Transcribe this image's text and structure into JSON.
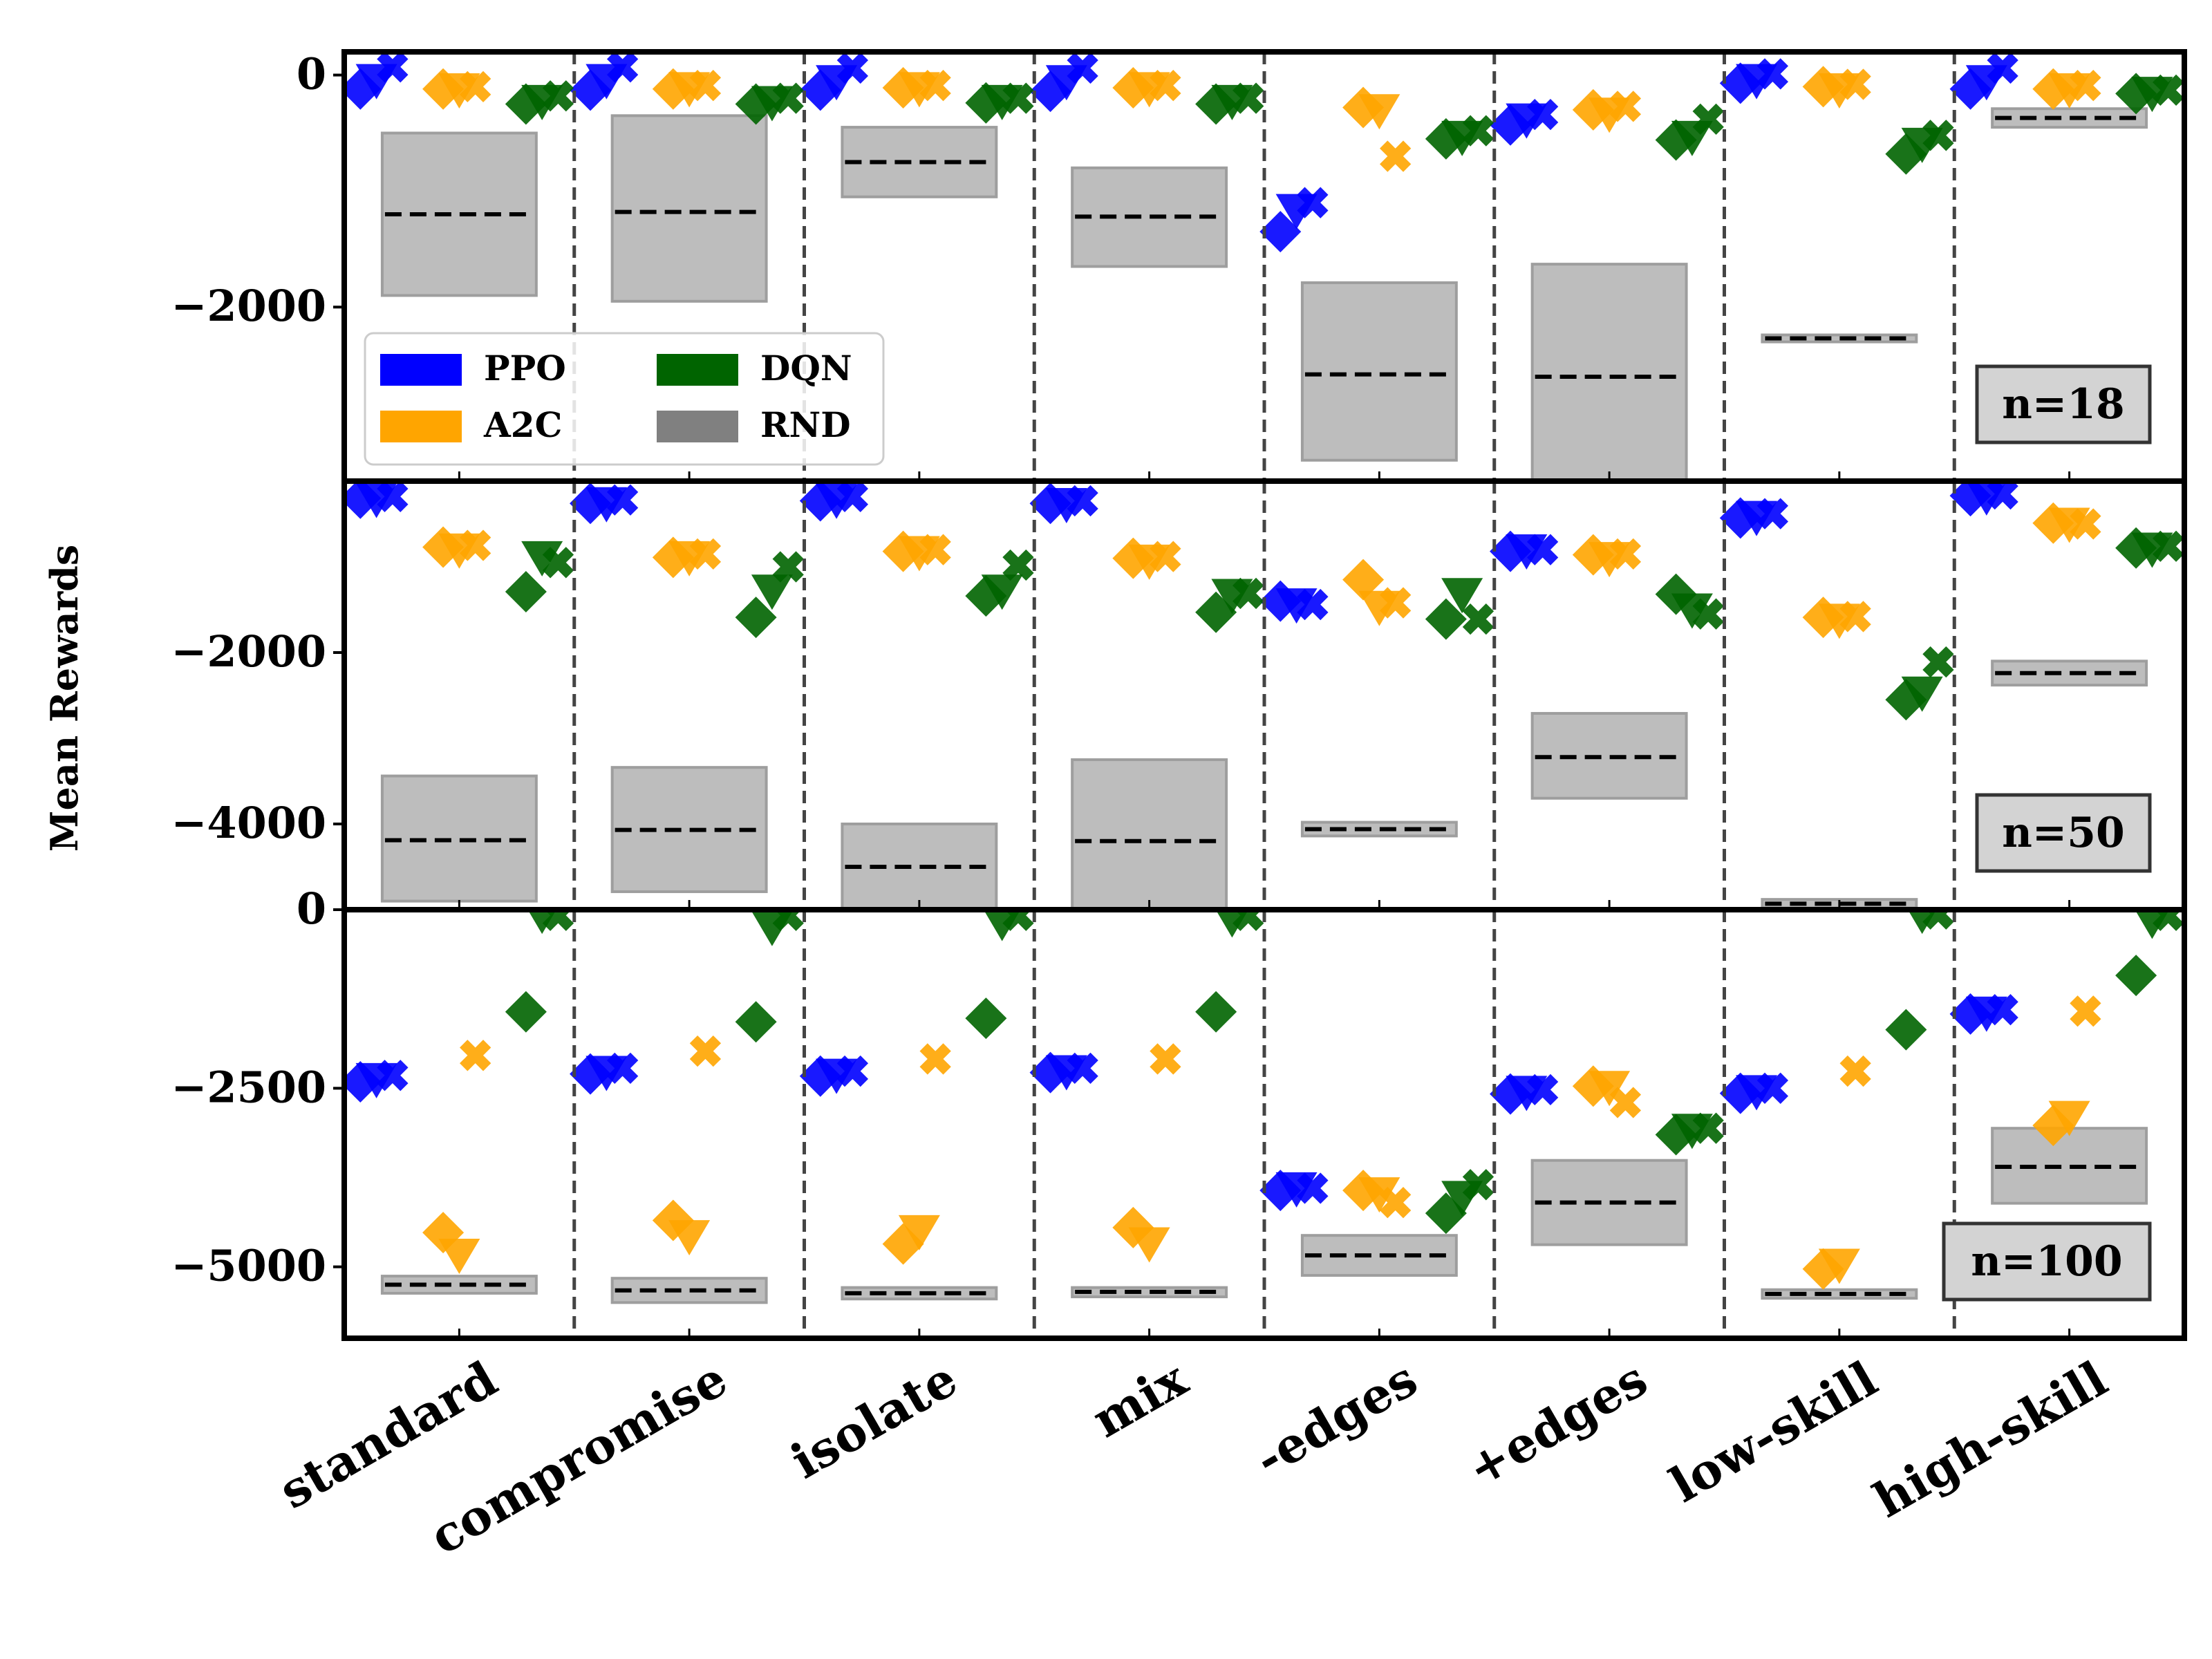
{
  "chart_data": {
    "type": "scatter",
    "ylabel": "Mean Rewards",
    "categories": [
      "standard",
      "compromise",
      "isolate",
      "mix",
      "-edges",
      "+edges",
      "low-skill",
      "high-skill"
    ],
    "legend": {
      "placement": "lower-left of top panel",
      "entries": [
        {
          "name": "PPO",
          "color": "#0000ff"
        },
        {
          "name": "A2C",
          "color": "#ffa500"
        },
        {
          "name": "DQN",
          "color": "#006400"
        },
        {
          "name": "RND",
          "color": "#808080"
        }
      ]
    },
    "colors": {
      "PPO": "#0000ff",
      "A2C": "#ffa500",
      "DQN": "#006400",
      "RND": "#808080"
    },
    "markers": [
      "diamond",
      "triangle-down",
      "x"
    ],
    "panels": [
      {
        "label": "n=18",
        "ylim": [
          -3500,
          200
        ],
        "yticks": [
          {
            "value": 0,
            "label": "0"
          },
          {
            "value": -2000,
            "label": "−2000"
          }
        ],
        "rnd": [
          {
            "mean": -1200,
            "low": -1900,
            "high": -500
          },
          {
            "mean": -1180,
            "low": -1950,
            "high": -350
          },
          {
            "mean": -750,
            "low": -1050,
            "high": -450
          },
          {
            "mean": -1220,
            "low": -1650,
            "high": -800
          },
          {
            "mean": -2580,
            "low": -3320,
            "high": -1790
          },
          {
            "mean": -2600,
            "low": -3600,
            "high": -1630
          },
          {
            "mean": -2270,
            "low": -2300,
            "high": -2240
          },
          {
            "mean": -370,
            "low": -450,
            "high": -290
          }
        ],
        "algos": {
          "PPO": [
            {
              "diamond": -120,
              "triangle-down": -30,
              "x": 70
            },
            {
              "diamond": -130,
              "triangle-down": -30,
              "x": 70
            },
            {
              "diamond": -130,
              "triangle-down": -40,
              "x": 60
            },
            {
              "diamond": -140,
              "triangle-down": -40,
              "x": 60
            },
            {
              "diamond": -1350,
              "triangle-down": -1150,
              "x": -1100
            },
            {
              "diamond": -430,
              "triangle-down": -370,
              "x": -340
            },
            {
              "diamond": -70,
              "triangle-down": -30,
              "x": 10
            },
            {
              "diamond": -120,
              "triangle-down": -40,
              "x": 60
            }
          ],
          "A2C": [
            {
              "diamond": -120,
              "triangle-down": -110,
              "x": -100
            },
            {
              "diamond": -120,
              "triangle-down": -100,
              "x": -90
            },
            {
              "diamond": -110,
              "triangle-down": -100,
              "x": -90
            },
            {
              "diamond": -110,
              "triangle-down": -100,
              "x": -90
            },
            {
              "diamond": -280,
              "triangle-down": -290,
              "x": -700
            },
            {
              "diamond": -300,
              "triangle-down": -320,
              "x": -270
            },
            {
              "diamond": -100,
              "triangle-down": -110,
              "x": -80
            },
            {
              "diamond": -120,
              "triangle-down": -110,
              "x": -90
            }
          ],
          "DQN": [
            {
              "diamond": -250,
              "triangle-down": -210,
              "x": -180
            },
            {
              "diamond": -250,
              "triangle-down": -220,
              "x": -200
            },
            {
              "diamond": -240,
              "triangle-down": -210,
              "x": -200
            },
            {
              "diamond": -250,
              "triangle-down": -210,
              "x": -200
            },
            {
              "diamond": -550,
              "triangle-down": -520,
              "x": -480
            },
            {
              "diamond": -560,
              "triangle-down": -520,
              "x": -380
            },
            {
              "diamond": -680,
              "triangle-down": -580,
              "x": -520
            },
            {
              "diamond": -160,
              "triangle-down": -140,
              "x": -130
            }
          ]
        }
      },
      {
        "label": "n=50",
        "ylim": [
          -5000,
          0
        ],
        "yticks": [
          {
            "value": -2000,
            "label": "−2000"
          },
          {
            "value": -4000,
            "label": "−4000"
          }
        ],
        "rnd": [
          {
            "mean": -4190,
            "low": -4900,
            "high": -3440
          },
          {
            "mean": -4070,
            "low": -4790,
            "high": -3340
          },
          {
            "mean": -4500,
            "low": -5000,
            "high": -4000
          },
          {
            "mean": -4200,
            "low": -5000,
            "high": -3250
          },
          {
            "mean": -4060,
            "low": -4140,
            "high": -3980
          },
          {
            "mean": -3220,
            "low": -3700,
            "high": -2710
          },
          {
            "mean": -4930,
            "low": -4980,
            "high": -4880
          },
          {
            "mean": -2240,
            "low": -2380,
            "high": -2100
          }
        ],
        "algos": {
          "PPO": [
            {
              "diamond": -200,
              "triangle-down": -190,
              "x": -180
            },
            {
              "diamond": -260,
              "triangle-down": -240,
              "x": -220
            },
            {
              "diamond": -230,
              "triangle-down": -200,
              "x": -180
            },
            {
              "diamond": -260,
              "triangle-down": -250,
              "x": -230
            },
            {
              "diamond": -1400,
              "triangle-down": -1420,
              "x": -1440
            },
            {
              "diamond": -820,
              "triangle-down": -790,
              "x": -800
            },
            {
              "diamond": -430,
              "triangle-down": -400,
              "x": -380
            },
            {
              "diamond": -170,
              "triangle-down": -160,
              "x": -150
            }
          ],
          "A2C": [
            {
              "diamond": -770,
              "triangle-down": -780,
              "x": -750
            },
            {
              "diamond": -890,
              "triangle-down": -870,
              "x": -850
            },
            {
              "diamond": -820,
              "triangle-down": -810,
              "x": -800
            },
            {
              "diamond": -900,
              "triangle-down": -910,
              "x": -880
            },
            {
              "diamond": -1150,
              "triangle-down": -1450,
              "x": -1420
            },
            {
              "diamond": -860,
              "triangle-down": -880,
              "x": -850
            },
            {
              "diamond": -1590,
              "triangle-down": -1600,
              "x": -1580
            },
            {
              "diamond": -490,
              "triangle-down": -480,
              "x": -500
            }
          ],
          "DQN": [
            {
              "diamond": -1290,
              "triangle-down": -870,
              "x": -950
            },
            {
              "diamond": -1590,
              "triangle-down": -1260,
              "x": -1000
            },
            {
              "diamond": -1340,
              "triangle-down": -1260,
              "x": -980
            },
            {
              "diamond": -1530,
              "triangle-down": -1310,
              "x": -1310
            },
            {
              "diamond": -1610,
              "triangle-down": -1300,
              "x": -1610
            },
            {
              "diamond": -1320,
              "triangle-down": -1480,
              "x": -1550
            },
            {
              "diamond": -2550,
              "triangle-down": -2450,
              "x": -2110
            },
            {
              "diamond": -780,
              "triangle-down": -770,
              "x": -760
            }
          ]
        }
      },
      {
        "label": "n=100",
        "ylim": [
          -6000,
          0
        ],
        "yticks": [
          {
            "value": 0,
            "label": "0"
          },
          {
            "value": -2500,
            "label": "−2500"
          },
          {
            "value": -5000,
            "label": "−5000"
          }
        ],
        "rnd": [
          {
            "mean": -5250,
            "low": -5370,
            "high": -5130
          },
          {
            "mean": -5330,
            "low": -5500,
            "high": -5160
          },
          {
            "mean": -5370,
            "low": -5450,
            "high": -5290
          },
          {
            "mean": -5350,
            "low": -5420,
            "high": -5290
          },
          {
            "mean": -4840,
            "low": -5120,
            "high": -4560
          },
          {
            "mean": -4100,
            "low": -4690,
            "high": -3510
          },
          {
            "mean": -5380,
            "low": -5440,
            "high": -5320
          },
          {
            "mean": -3600,
            "low": -4110,
            "high": -3060
          }
        ],
        "algos": {
          "PPO": [
            {
              "diamond": -2410,
              "triangle-down": -2350,
              "x": -2320
            },
            {
              "diamond": -2300,
              "triangle-down": -2250,
              "x": -2220
            },
            {
              "diamond": -2330,
              "triangle-down": -2290,
              "x": -2260
            },
            {
              "diamond": -2280,
              "triangle-down": -2240,
              "x": -2220
            },
            {
              "diamond": -3930,
              "triangle-down": -3880,
              "x": -3900
            },
            {
              "diamond": -2580,
              "triangle-down": -2530,
              "x": -2520
            },
            {
              "diamond": -2570,
              "triangle-down": -2520,
              "x": -2500
            },
            {
              "diamond": -1460,
              "triangle-down": -1420,
              "x": -1400
            }
          ],
          "A2C": [
            {
              "diamond": -4520,
              "triangle-down": -4810,
              "x": -2040
            },
            {
              "diamond": -4350,
              "triangle-down": -4550,
              "x": -1980
            },
            {
              "diamond": -4680,
              "triangle-down": -4480,
              "x": -2090
            },
            {
              "diamond": -4450,
              "triangle-down": -4650,
              "x": -2090
            },
            {
              "diamond": -3930,
              "triangle-down": -3950,
              "x": -4100
            },
            {
              "diamond": -2470,
              "triangle-down": -2460,
              "x": -2700
            },
            {
              "diamond": -5030,
              "triangle-down": -4950,
              "x": -2260
            },
            {
              "diamond": -3020,
              "triangle-down": -2880,
              "x": -1420
            }
          ],
          "DQN": [
            {
              "diamond": -1430,
              "triangle-down": -50,
              "x": -80
            },
            {
              "diamond": -1570,
              "triangle-down": -220,
              "x": -80
            },
            {
              "diamond": -1520,
              "triangle-down": -150,
              "x": -80
            },
            {
              "diamond": -1430,
              "triangle-down": -100,
              "x": -80
            },
            {
              "diamond": -4250,
              "triangle-down": -4000,
              "x": -3850
            },
            {
              "diamond": -3150,
              "triangle-down": -3060,
              "x": -3060
            },
            {
              "diamond": -1680,
              "triangle-down": -50,
              "x": -60
            },
            {
              "diamond": -920,
              "triangle-down": -120,
              "x": -80
            }
          ]
        }
      }
    ]
  }
}
